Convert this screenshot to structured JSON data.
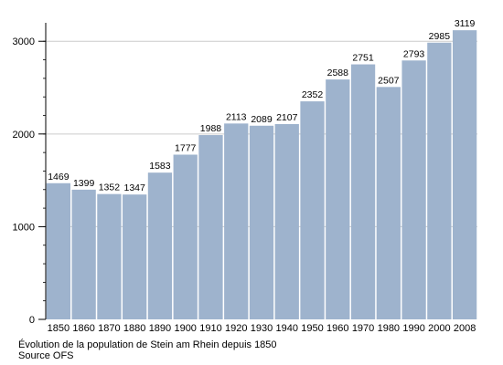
{
  "chart_data": {
    "type": "bar",
    "categories": [
      "1850",
      "1860",
      "1870",
      "1880",
      "1890",
      "1900",
      "1910",
      "1920",
      "1930",
      "1940",
      "1950",
      "1960",
      "1970",
      "1980",
      "1990",
      "2000",
      "2008"
    ],
    "values": [
      1469,
      1399,
      1352,
      1347,
      1583,
      1777,
      1988,
      2113,
      2089,
      2107,
      2352,
      2588,
      2751,
      2507,
      2793,
      2985,
      3119
    ],
    "data_labels": [
      "1469",
      "1399",
      "1352",
      "1347",
      "1583",
      "1777",
      "1988",
      "2113",
      "2089",
      "2107",
      "2352",
      "2588",
      "2751",
      "2507",
      "2793",
      "2985",
      "3119"
    ],
    "yticks": [
      0,
      1000,
      2000,
      3000
    ],
    "ytick_labels": [
      "0",
      "1000",
      "2000",
      "3000"
    ],
    "ylim": [
      0,
      3150
    ],
    "minor_tick_step": 200,
    "grid": true,
    "title": "",
    "xlabel": "",
    "ylabel": "",
    "bar_color": "#9eb3cd",
    "grid_color": "#cccccc"
  },
  "caption": {
    "line1": "Évolution de la population de Stein am Rhein depuis 1850",
    "line2": "Source OFS"
  }
}
